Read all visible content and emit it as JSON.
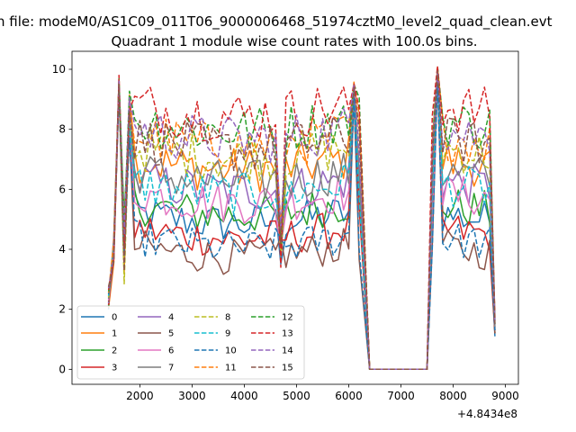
{
  "chart_data": {
    "type": "line",
    "suptitle": "n file: modeM0/AS1C09_011T06_9000006468_51974cztM0_level2_quad_clean.evt",
    "title": "Quadrant 1 module wise count rates with 100.0s bins.",
    "xlabel": "",
    "ylabel": "",
    "x_offset_label": "+4.8434e8",
    "xlim": [
      700,
      9250
    ],
    "ylim": [
      -0.5,
      10.6
    ],
    "xticks": [
      2000,
      3000,
      4000,
      5000,
      6000,
      7000,
      8000,
      9000
    ],
    "yticks": [
      0,
      2,
      4,
      6,
      8,
      10
    ],
    "grid": false,
    "legend_position": "lower-left",
    "segments": [
      {
        "t0": 1400,
        "dt": 100,
        "n": 49
      },
      {
        "t0": 6400,
        "dt": 100,
        "n": 12
      },
      {
        "t0": 7600,
        "dt": 100,
        "n": 13
      }
    ],
    "series": [
      {
        "name": "0",
        "color": "#1f77b4",
        "dash": "solid",
        "level": 5.2,
        "spike": 9.5,
        "tail": 1.1
      },
      {
        "name": "1",
        "color": "#ff7f0e",
        "dash": "solid",
        "level": 7.0,
        "spike": 9.6,
        "tail": 1.3
      },
      {
        "name": "2",
        "color": "#2ca02c",
        "dash": "solid",
        "level": 5.5,
        "spike": 9.5,
        "tail": 1.2
      },
      {
        "name": "3",
        "color": "#d62728",
        "dash": "solid",
        "level": 4.7,
        "spike": 9.5,
        "tail": 1.2
      },
      {
        "name": "4",
        "color": "#9467bd",
        "dash": "solid",
        "level": 6.3,
        "spike": 9.4,
        "tail": 1.3
      },
      {
        "name": "5",
        "color": "#8c564b",
        "dash": "solid",
        "level": 4.1,
        "spike": 9.3,
        "tail": 1.2
      },
      {
        "name": "6",
        "color": "#e377c2",
        "dash": "solid",
        "level": 5.9,
        "spike": 9.3,
        "tail": 1.4
      },
      {
        "name": "7",
        "color": "#7f7f7f",
        "dash": "solid",
        "level": 6.6,
        "spike": 9.4,
        "tail": 1.4
      },
      {
        "name": "8",
        "color": "#bcbd22",
        "dash": "dashed",
        "level": 7.4,
        "spike": 9.5,
        "tail": 1.5
      },
      {
        "name": "9",
        "color": "#17becf",
        "dash": "dashed",
        "level": 6.2,
        "spike": 9.4,
        "tail": 1.5
      },
      {
        "name": "10",
        "color": "#1f77b4",
        "dash": "dashed",
        "level": 4.4,
        "spike": 9.2,
        "tail": 1.3
      },
      {
        "name": "11",
        "color": "#ff7f0e",
        "dash": "dashed",
        "level": 7.8,
        "spike": 9.6,
        "tail": 1.6
      },
      {
        "name": "12",
        "color": "#2ca02c",
        "dash": "dashed",
        "level": 8.3,
        "spike": 9.7,
        "tail": 1.6
      },
      {
        "name": "13",
        "color": "#d62728",
        "dash": "dashed",
        "level": 8.8,
        "spike": 9.8,
        "tail": 1.7
      },
      {
        "name": "14",
        "color": "#9467bd",
        "dash": "dashed",
        "level": 8.0,
        "spike": 9.6,
        "tail": 1.6
      },
      {
        "name": "15",
        "color": "#8c564b",
        "dash": "dashed",
        "level": 7.7,
        "spike": 9.5,
        "tail": 1.5
      }
    ]
  }
}
